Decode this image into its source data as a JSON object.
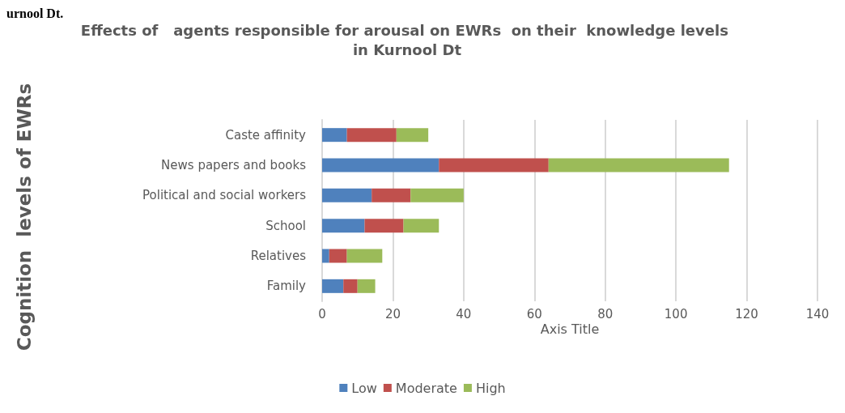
{
  "chart_data": {
    "type": "bar",
    "orientation": "horizontal",
    "stacked": true,
    "title": "Effects of   agents responsible for arousal on EWRs  on their  knowledge levels in Kurnool Dt",
    "xlabel": "Axis Title",
    "annotations": [
      "urnool Dt.",
      "Cognition  levels of EWRs"
    ],
    "categories": [
      "Caste affinity",
      "News papers and books",
      "Political and social workers",
      "School",
      "Relatives",
      "Family"
    ],
    "series": [
      {
        "name": "Low",
        "color": "#4f81bd",
        "values": [
          7,
          33,
          14,
          12,
          2,
          6
        ]
      },
      {
        "name": "Moderate",
        "color": "#c0504d",
        "values": [
          14,
          31,
          11,
          11,
          5,
          4
        ]
      },
      {
        "name": "High",
        "color": "#9bbb59",
        "values": [
          9,
          51,
          15,
          10,
          10,
          5
        ]
      }
    ],
    "xlim": [
      0,
      140
    ],
    "xticks": [
      0,
      20,
      40,
      60,
      80,
      100,
      120,
      140
    ],
    "grid": "x",
    "legend": "bottom"
  }
}
